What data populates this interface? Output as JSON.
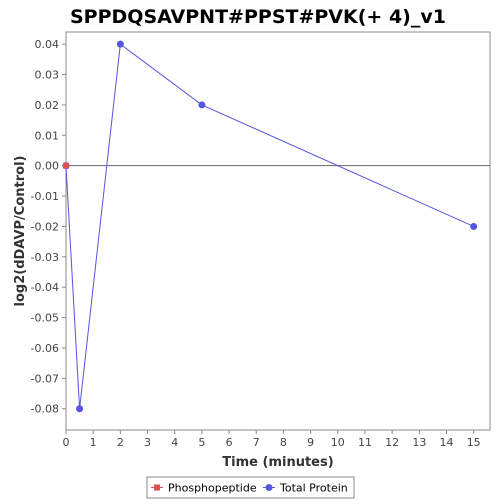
{
  "chart_data": {
    "type": "line",
    "title": "SPPDQSAVPNT#PPST#PVK(+ 4)_v1",
    "xlabel": "Time (minutes)",
    "ylabel": "log2(dDAVP/Control)",
    "xlim": [
      0,
      15.6
    ],
    "ylim": [
      -0.087,
      0.044
    ],
    "x_ticks": [
      0,
      1,
      2,
      3,
      4,
      5,
      6,
      7,
      8,
      9,
      10,
      11,
      12,
      13,
      14,
      15
    ],
    "y_ticks": [
      0.04,
      0.03,
      0.02,
      0.01,
      0.0,
      -0.01,
      -0.02,
      -0.03,
      -0.04,
      -0.05,
      -0.06,
      -0.07,
      -0.08
    ],
    "y_tick_labels": [
      "0.04",
      "0.03",
      "0.02",
      "0.01",
      "0.00",
      "-0.01",
      "-0.02",
      "-0.03",
      "-0.04",
      "-0.05",
      "-0.06",
      "-0.07",
      "-0.08"
    ],
    "grid": false,
    "zero_line": true,
    "legend_position": "bottom",
    "series": [
      {
        "name": "Phosphopeptide",
        "color": "#e05050",
        "marker": "square",
        "points": [
          {
            "x": 0,
            "y": 0.0
          }
        ]
      },
      {
        "name": "Total Protein",
        "color": "#5555dd",
        "marker": "circle",
        "points": [
          {
            "x": 0,
            "y": 0.0
          },
          {
            "x": 0.5,
            "y": -0.08
          },
          {
            "x": 2,
            "y": 0.04
          },
          {
            "x": 5,
            "y": 0.02
          },
          {
            "x": 15,
            "y": -0.02
          }
        ]
      }
    ]
  }
}
